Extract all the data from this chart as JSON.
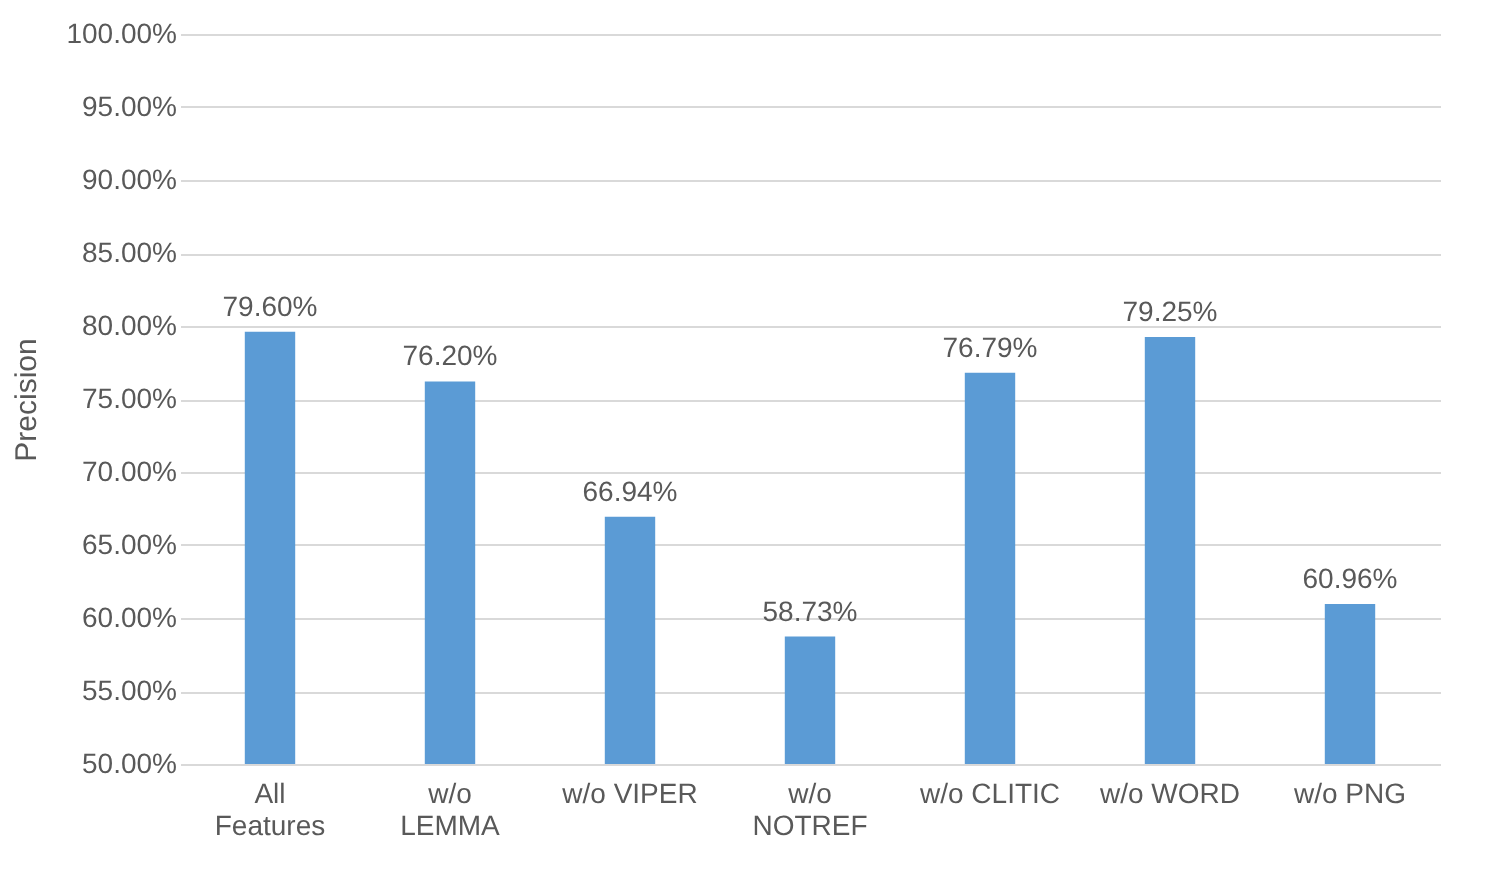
{
  "chart_data": {
    "type": "bar",
    "ylabel": "Precision",
    "categories": [
      "All\nFeatures",
      "w/o\nLEMMA",
      "w/o VIPER",
      "w/o\nNOTREF",
      "w/o CLITIC",
      "w/o WORD",
      "w/o PNG"
    ],
    "values": [
      79.6,
      76.2,
      66.94,
      58.73,
      76.79,
      79.25,
      60.96
    ],
    "value_labels": [
      "79.60%",
      "76.20%",
      "66.94%",
      "58.73%",
      "76.79%",
      "79.25%",
      "60.96%"
    ],
    "color": "#5b9bd5",
    "ylim": [
      50,
      100
    ],
    "yticks": [
      {
        "value": 50,
        "label": "50.00%"
      },
      {
        "value": 55,
        "label": "55.00%"
      },
      {
        "value": 60,
        "label": "60.00%"
      },
      {
        "value": 65,
        "label": "65.00%"
      },
      {
        "value": 70,
        "label": "70.00%"
      },
      {
        "value": 75,
        "label": "75.00%"
      },
      {
        "value": 80,
        "label": "80.00%"
      },
      {
        "value": 85,
        "label": "85.00%"
      },
      {
        "value": 90,
        "label": "90.00%"
      },
      {
        "value": 95,
        "label": "95.00%"
      },
      {
        "value": 100,
        "label": "100.00%"
      }
    ],
    "grid": "y"
  }
}
